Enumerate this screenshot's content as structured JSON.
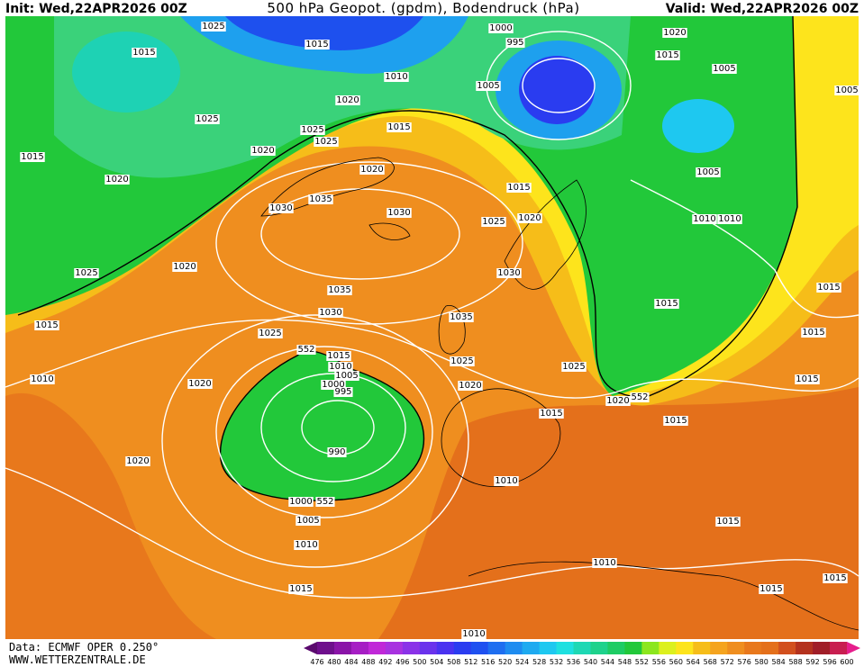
{
  "header": {
    "init": "Init: Wed,22APR2026 00Z",
    "title": "500 hPa Geopot. (gpdm), Bodendruck (hPa)",
    "valid": "Valid: Wed,22APR2026 00Z"
  },
  "footer": {
    "source": "Data: ECMWF OPER 0.250°",
    "website": "WWW.WETTERZENTRALE.DE"
  },
  "isobar_labels": [
    1025,
    1015,
    1010,
    1000,
    995,
    1020,
    1015,
    1005,
    1005,
    1015,
    1025,
    1020,
    1025,
    1025,
    1015,
    1005,
    1015,
    1020,
    1020,
    1020,
    1035,
    1030,
    1030,
    1015,
    1020,
    1025,
    1005,
    1010,
    1010,
    1025,
    1020,
    1030,
    1035,
    1030,
    1035,
    1015,
    1015,
    1015,
    1025,
    1015,
    1010,
    1020,
    552,
    1015,
    1010,
    1005,
    1000,
    995,
    1025,
    1025,
    1020,
    1020,
    552,
    1015,
    1015,
    1015,
    990,
    1020,
    1010,
    1000,
    552,
    1005,
    1010,
    1015,
    1010,
    1015,
    1015,
    1015,
    1010
  ],
  "colorbar": {
    "labels": [
      476,
      480,
      484,
      488,
      492,
      496,
      500,
      504,
      508,
      512,
      516,
      520,
      524,
      528,
      532,
      536,
      540,
      544,
      548,
      552,
      556,
      560,
      564,
      568,
      572,
      576,
      580,
      584,
      588,
      592,
      596,
      600
    ],
    "colors": [
      "#5a0a6e",
      "#6e0f8c",
      "#8a14a8",
      "#a61ec4",
      "#c028d8",
      "#a832e0",
      "#8a32e8",
      "#6a32ec",
      "#4a32f0",
      "#2a3cf0",
      "#1e50f0",
      "#1e6ef0",
      "#1e8cf0",
      "#1eaaf0",
      "#1ec8f0",
      "#1ee0e0",
      "#1ed8b4",
      "#1ed28c",
      "#1ecc64",
      "#22c83a",
      "#8ce61e",
      "#dcf01e",
      "#fde41c",
      "#f6bd19",
      "#f5a41e",
      "#ef8e1f",
      "#e8781c",
      "#e4701b",
      "#d2501e",
      "#b4321e",
      "#a01e28",
      "#c81e50",
      "#e61e8c"
    ]
  }
}
